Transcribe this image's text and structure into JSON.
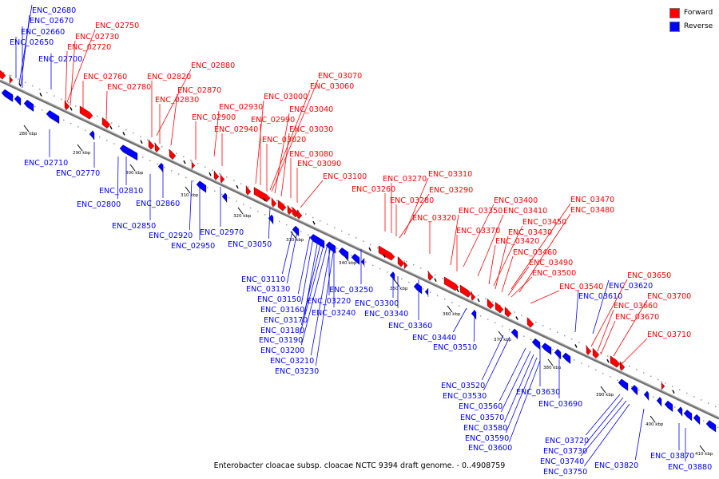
{
  "title": "Enterobacter cloacae subsp. cloacae NCTC 9394 draft genome. - 0..4908759",
  "legend": [
    {
      "label": "Forward",
      "color": "#ff0000"
    },
    {
      "label": "Reverse",
      "color": "#0000ff"
    }
  ],
  "colors": {
    "forward": "#ff0000",
    "reverse": "#0000ff",
    "backbone": "#8c8c8c",
    "leader_forward": "#ff0000",
    "leader_reverse": "#0000ff"
  },
  "scale_labels": [
    "280 kbp",
    "290 kbp",
    "300 kbp",
    "310 kbp",
    "320 kbp",
    "330 kbp",
    "340 kbp",
    "350 kbp",
    "360 kbp",
    "370 kbp",
    "380 kbp",
    "390 kbp",
    "400 kbp",
    "410 kbp"
  ],
  "forward_genes": [
    "ENC_02750",
    "ENC_02730",
    "ENC_02720",
    "ENC_02760",
    "ENC_02780",
    "ENC_02880",
    "ENC_02820",
    "ENC_02870",
    "ENC_02830",
    "ENC_02930",
    "ENC_02900",
    "ENC_02940",
    "ENC_03070",
    "ENC_03060",
    "ENC_03000",
    "ENC_03040",
    "ENC_02990",
    "ENC_03030",
    "ENC_03020",
    "ENC_03080",
    "ENC_03090",
    "ENC_03100",
    "ENC_03310",
    "ENC_03270",
    "ENC_03290",
    "ENC_03260",
    "ENC_03280",
    "ENC_03320",
    "ENC_03400",
    "ENC_03470",
    "ENC_03350",
    "ENC_03410",
    "ENC_03480",
    "ENC_03450",
    "ENC_03370",
    "ENC_03430",
    "ENC_03420",
    "ENC_03460",
    "ENC_03490",
    "ENC_03500",
    "ENC_03540",
    "ENC_03650",
    "ENC_03700",
    "ENC_03660",
    "ENC_03670",
    "ENC_03710"
  ],
  "reverse_genes": [
    "ENC_02680",
    "ENC_02670",
    "ENC_02660",
    "ENC_02650",
    "ENC_02700",
    "ENC_02710",
    "ENC_02770",
    "ENC_02810",
    "ENC_02800",
    "ENC_02860",
    "ENC_02850",
    "ENC_02920",
    "ENC_02970",
    "ENC_02950",
    "ENC_03050",
    "ENC_03110",
    "ENC_03130",
    "ENC_03150",
    "ENC_03160",
    "ENC_03170",
    "ENC_03180",
    "ENC_03190",
    "ENC_03200",
    "ENC_03210",
    "ENC_03230",
    "ENC_03250",
    "ENC_03220",
    "ENC_03240",
    "ENC_03300",
    "ENC_03340",
    "ENC_03360",
    "ENC_03440",
    "ENC_03510",
    "ENC_03620",
    "ENC_03610",
    "ENC_03520",
    "ENC_03530",
    "ENC_03630",
    "ENC_03560",
    "ENC_03570",
    "ENC_03690",
    "ENC_03580",
    "ENC_03590",
    "ENC_03600",
    "ENC_03720",
    "ENC_03730",
    "ENC_03740",
    "ENC_03750",
    "ENC_03820",
    "ENC_03870",
    "ENC_03880"
  ]
}
